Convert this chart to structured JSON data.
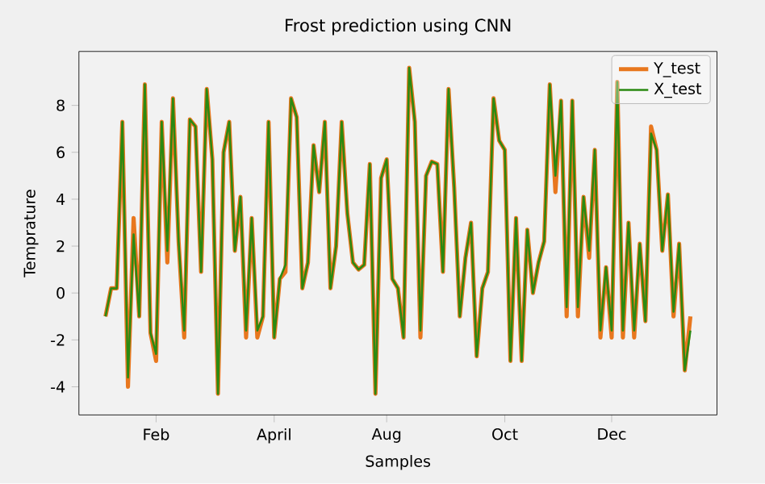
{
  "chart_data": {
    "type": "line",
    "title": "Frost prediction using CNN",
    "xlabel": "Samples",
    "ylabel": "Temprature",
    "ylim": [
      -5.2,
      10.3
    ],
    "categories": [
      null,
      null,
      null,
      null,
      null,
      null,
      null,
      null,
      null,
      "Feb",
      null,
      null,
      null,
      null,
      null,
      null,
      null,
      null,
      null,
      null,
      null,
      null,
      null,
      null,
      null,
      null,
      null,
      null,
      null,
      null,
      "April",
      null,
      null,
      null,
      null,
      null,
      null,
      null,
      null,
      null,
      null,
      null,
      null,
      null,
      null,
      null,
      null,
      null,
      null,
      null,
      "Aug",
      null,
      null,
      null,
      null,
      null,
      null,
      null,
      null,
      null,
      null,
      null,
      null,
      null,
      null,
      null,
      null,
      null,
      null,
      null,
      null,
      "Oct",
      null,
      null,
      null,
      null,
      null,
      null,
      null,
      null,
      null,
      null,
      null,
      null,
      null,
      null,
      null,
      null,
      null,
      null,
      "Dec",
      null,
      null,
      null,
      null,
      null,
      null,
      null,
      null,
      null,
      null,
      null,
      null,
      null,
      null
    ],
    "yticks": [
      -4,
      -2,
      0,
      2,
      4,
      6,
      8
    ],
    "series": [
      {
        "name": "Y_test",
        "color": "#e8771e",
        "values": [
          -1,
          0.2,
          0.2,
          7.3,
          -4,
          3.2,
          -1,
          8.9,
          -1.7,
          -2.9,
          7.3,
          1.3,
          8.3,
          2.2,
          -1.9,
          7.4,
          7.1,
          0.9,
          8.7,
          5.7,
          -4.3,
          6,
          7.3,
          1.8,
          4.1,
          -1.9,
          3.2,
          -1.9,
          -1,
          7.3,
          -1.9,
          0.6,
          0.9,
          8.3,
          7.5,
          0.2,
          1.3,
          6.3,
          4.3,
          7.3,
          0.2,
          2,
          7.3,
          3.4,
          1.3,
          1,
          1.2,
          5.5,
          -4.3,
          4.9,
          5.7,
          0.6,
          0.2,
          -1.9,
          9.6,
          7.3,
          -1.9,
          5,
          5.6,
          5.5,
          0.9,
          8.7,
          4.5,
          -1,
          1.5,
          3,
          -2.7,
          0.2,
          0.9,
          8.3,
          6.5,
          6.1,
          -2.9,
          3.2,
          -2.9,
          2.7,
          0,
          1.3,
          2.2,
          8.9,
          4.3,
          8.2,
          -1,
          8.2,
          -1,
          4.1,
          1.5,
          6.1,
          -1.9,
          1.1,
          -1.9,
          9,
          -1.9,
          3,
          -1.9,
          2.1,
          -1.2,
          7.1,
          6.1,
          1.8,
          4.2,
          -1,
          2.1,
          -3.3,
          -1
        ]
      },
      {
        "name": "X_test",
        "color": "#2a8a12",
        "values": [
          -1,
          0.2,
          0.2,
          7.3,
          -3.6,
          2.5,
          -1,
          8.9,
          -1.7,
          -2.6,
          7.3,
          1.8,
          8.3,
          2.2,
          -1.6,
          7.4,
          7.1,
          0.9,
          8.7,
          5.7,
          -4.3,
          6,
          7.3,
          1.8,
          4.1,
          -1.6,
          3.2,
          -1.6,
          -1,
          7.3,
          -1.9,
          0.6,
          1.2,
          8.3,
          7.5,
          0.2,
          1.3,
          6.3,
          4.3,
          7.3,
          0.2,
          2,
          7.3,
          3.4,
          1.3,
          1,
          1.2,
          5.5,
          -4.3,
          4.9,
          5.7,
          0.6,
          0.2,
          -1.9,
          9.6,
          7.3,
          -1.6,
          5,
          5.6,
          5.5,
          0.9,
          8.7,
          4.5,
          -1,
          1.5,
          3,
          -2.7,
          0.2,
          0.9,
          8.3,
          6.5,
          6.1,
          -2.9,
          3.2,
          -2.9,
          2.7,
          0,
          1.3,
          2.2,
          8.9,
          5,
          8.2,
          -0.6,
          8.2,
          -0.6,
          4.1,
          1.8,
          6.1,
          -1.6,
          1.1,
          -1.6,
          9,
          -1.6,
          3,
          -1.6,
          2.1,
          -1.2,
          6.8,
          6.1,
          1.8,
          4.2,
          -0.8,
          2.1,
          -3.3,
          -1.6
        ]
      }
    ],
    "legend": "top right",
    "marker": "none",
    "line_style": "solid",
    "grid": false
  }
}
